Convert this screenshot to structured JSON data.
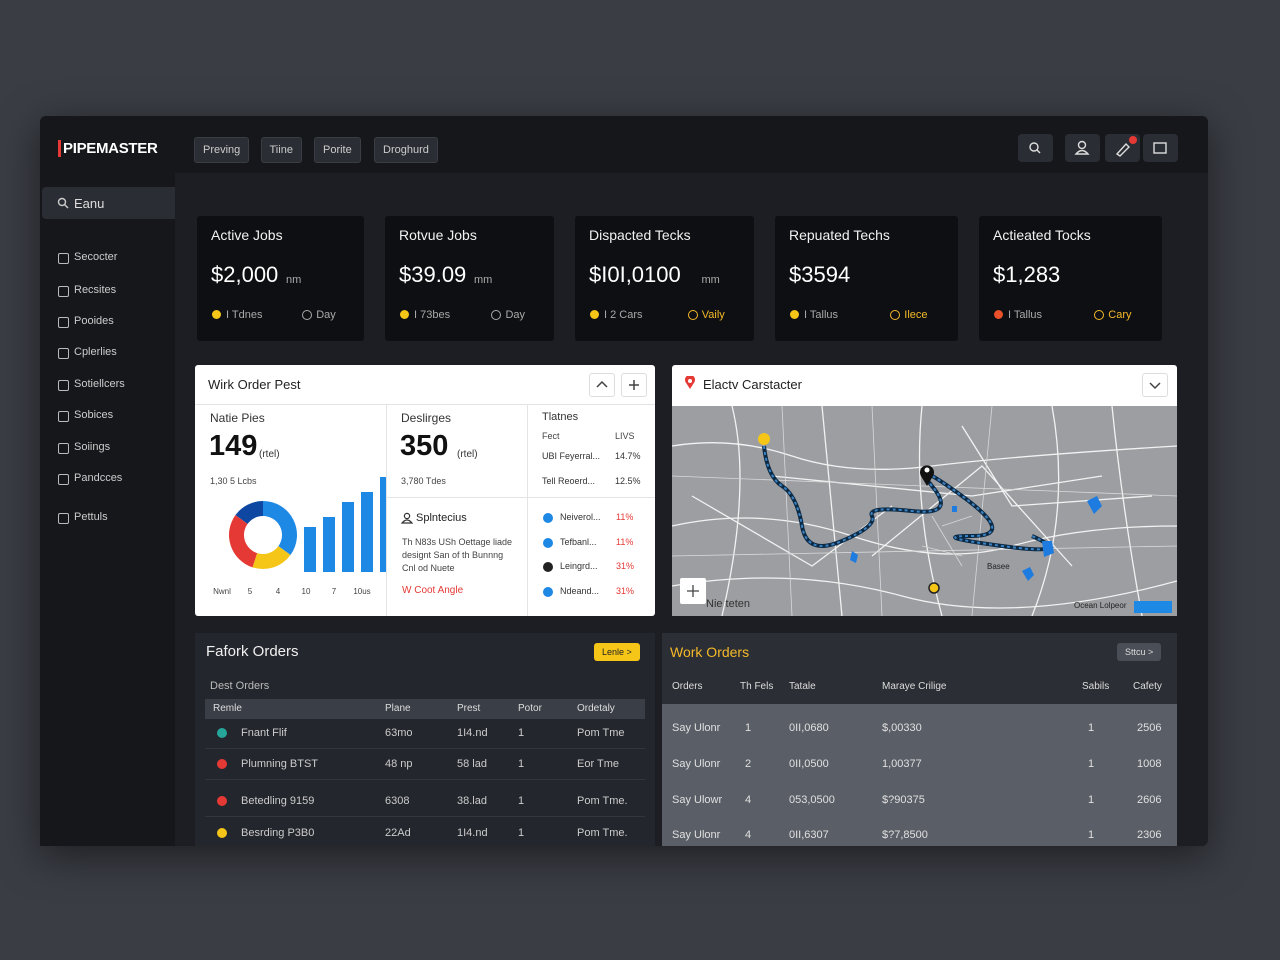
{
  "header": {
    "logo": "PIPEMASTER",
    "tabs": [
      "Preving",
      "Tiine",
      "Porite",
      "Droghurd"
    ]
  },
  "sidebar": {
    "search": "Eanu",
    "items": [
      "Secocter",
      "Recsites",
      "Pooides",
      "Cplerlies",
      "Sotiellcers",
      "Sobices",
      "Soiings",
      "Pandcces",
      "Pettuls"
    ]
  },
  "kpis": [
    {
      "title": "Active Jobs",
      "value": "$2,000",
      "unit": "nm",
      "note1": "I Tdnes",
      "note2": "Day"
    },
    {
      "title": "Rotvue Jobs",
      "value": "$39.09",
      "unit": "mm",
      "note1": "I 73bes",
      "note2": "Day"
    },
    {
      "title": "Dispacted Tecks",
      "value": "$I0I,0100",
      "unit": "mm",
      "note1": "I 2 Cars",
      "note2": "Vaily"
    },
    {
      "title": "Repuated Techs",
      "value": "$3594",
      "unit": "",
      "note1": "I Tallus",
      "note2": "Ilece"
    },
    {
      "title": "Actieated Tocks",
      "value": "$1,283",
      "unit": "",
      "note1": "I Tallus",
      "note2": "Cary"
    }
  ],
  "work_order_pest": {
    "title": "Wirk Order Pest",
    "col1": {
      "label": "Natie Pies",
      "value": "149",
      "unit": "(rtel)",
      "sub": "1,30 5 Lcbs"
    },
    "col2": {
      "label": "Deslirges",
      "value": "350",
      "unit": "(rtel)",
      "sub": "3,780 Tdes"
    },
    "chart": {
      "donut": [
        35,
        20,
        30,
        15
      ],
      "donut_colors": [
        "#1e88e5",
        "#f5c518",
        "#e53935",
        "#0d47a1"
      ],
      "bars": [
        45,
        55,
        70,
        80,
        95
      ],
      "bar_color": "#1e88e5",
      "ylim": [
        0,
        100
      ],
      "labels": [
        "Nwnl",
        "5",
        "4",
        "10",
        "7",
        "10us"
      ]
    },
    "notes": {
      "title": "Splntecius",
      "text": [
        "Th N83s USh Oettage liade",
        "designt San of th Bunnng",
        "Cnl od Nuete"
      ],
      "link": "W Coot Angle"
    },
    "col3": {
      "title": "Tlatnes",
      "head": [
        "Fect",
        "LIVS"
      ],
      "rows": [
        [
          "UBI Feyerral...",
          "14.7%"
        ],
        [
          "Tell Reoerd...",
          "12.5%"
        ]
      ],
      "list": [
        [
          "Neiverol...",
          "11%"
        ],
        [
          "Tefbanl...",
          "11%"
        ],
        [
          "Leingrd...",
          "31%"
        ],
        [
          "Ndeand...",
          "31%"
        ]
      ]
    }
  },
  "map": {
    "title": "Elactv Carstacter",
    "labels": [
      "Nie teten",
      "Ocean Lolpeor",
      "Basee"
    ]
  },
  "orders_left": {
    "title": "Fafork Orders",
    "button": "Lenle >",
    "subtitle": "Dest Orders",
    "columns": [
      "Remle",
      "Plane",
      "Prest",
      "Potor",
      "Ordetaly"
    ],
    "rows": [
      [
        "Fnant Flif",
        "63mo",
        "1I4.nd",
        "1",
        "Pom Tme"
      ],
      [
        "Plumning BTST",
        "48 np",
        "58 lad",
        "1",
        "Eor Tme"
      ],
      [
        "Betedling 9159",
        "6308",
        "38.lad",
        "1",
        "Pom Tme."
      ],
      [
        "Besrding P3B0",
        "22Ad",
        "1I4.nd",
        "1",
        "Pom Tme."
      ]
    ]
  },
  "orders_right": {
    "title": "Work Orders",
    "button": "Sttcu >",
    "columns": [
      "Orders",
      "Th Fels",
      "Tatale",
      "Maraye Crilige",
      "Sabils",
      "Cafety"
    ],
    "rows": [
      [
        "Say Ulonr",
        "1",
        "0II,0680",
        "$,00330",
        "1",
        "2506"
      ],
      [
        "Say Ulonr",
        "2",
        "0II,0500",
        "1,00377",
        "1",
        "1008"
      ],
      [
        "Say Ulowr",
        "4",
        "053,0500",
        "$?90375",
        "1",
        "2606"
      ],
      [
        "Say Ulonr",
        "4",
        "0II,6307",
        "$?7,8500",
        "1",
        "2306"
      ]
    ]
  }
}
